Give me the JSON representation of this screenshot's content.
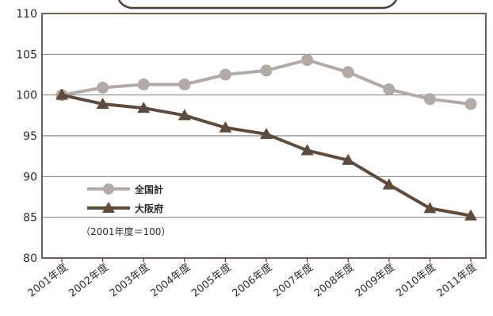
{
  "chart_data": {
    "type": "line",
    "categories": [
      "2001年度",
      "2002年度",
      "2003年度",
      "2004年度",
      "2005年度",
      "2006年度",
      "2007年度",
      "2008年度",
      "2009年度",
      "2010年度",
      "2011年度"
    ],
    "series": [
      {
        "name": "全国計",
        "marker": "circle",
        "color": "#b3aba3",
        "values": [
          100,
          100.9,
          101.3,
          101.3,
          102.5,
          103.0,
          104.3,
          102.8,
          100.7,
          99.5,
          98.9
        ]
      },
      {
        "name": "大阪府",
        "marker": "triangle",
        "color": "#5e4b3c",
        "values": [
          100,
          98.9,
          98.4,
          97.5,
          96.0,
          95.2,
          93.2,
          92.0,
          89.0,
          86.1,
          85.2
        ]
      }
    ],
    "note": "（2001年度＝100）",
    "y_ticks": [
      80,
      85,
      90,
      95,
      100,
      105,
      110
    ],
    "ylim": [
      80,
      110
    ],
    "grid": true,
    "legend_position": "lower-left",
    "title": "",
    "xlabel": "",
    "ylabel": ""
  },
  "colors": {
    "frame": "#4a3b2e",
    "grid": "#6a6a6a",
    "text": "#2b2b2b"
  }
}
